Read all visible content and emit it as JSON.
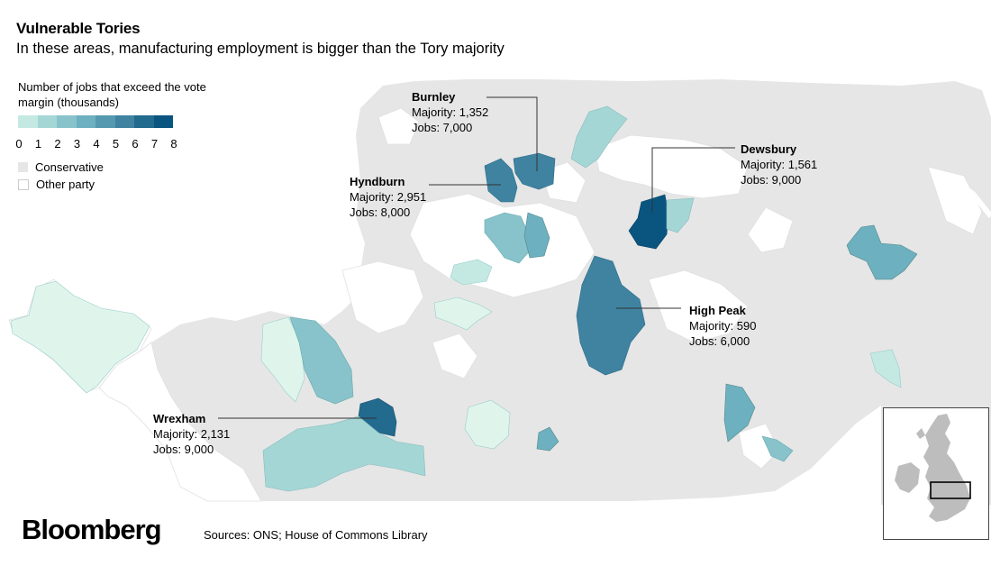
{
  "title": "Vulnerable Tories",
  "subtitle": "In these areas, manufacturing employment is bigger than the Tory majority",
  "legend": {
    "title": "Number of jobs that exceed the vote margin (thousands)",
    "ticks": [
      "0",
      "1",
      "2",
      "3",
      "4",
      "5",
      "6",
      "7",
      "8"
    ],
    "scale_colors": [
      "#dff5ec",
      "#c4e9e2",
      "#a5d6d6",
      "#88c3cc",
      "#6db0c0",
      "#5599b0",
      "#3f83a0",
      "#226a8e",
      "#0a5580"
    ],
    "conservative_label": "Conservative",
    "other_party_label": "Other party",
    "conservative_color": "#e6e6e6",
    "other_party_color": "#ffffff"
  },
  "callouts": [
    {
      "name": "Burnley",
      "majority": "Majority: 1,352",
      "jobs": "Jobs: 7,000"
    },
    {
      "name": "Dewsbury",
      "majority": "Majority: 1,561",
      "jobs": "Jobs: 9,000"
    },
    {
      "name": "Hyndburn",
      "majority": "Majority: 2,951",
      "jobs": "Jobs: 8,000"
    },
    {
      "name": "High Peak",
      "majority": "Majority: 590",
      "jobs": "Jobs: 6,000"
    },
    {
      "name": "Wrexham",
      "majority": "Majority: 2,131",
      "jobs": "Jobs: 9,000"
    }
  ],
  "brand": "Bloomberg",
  "source": "Sources: ONS; House of Commons Library"
}
